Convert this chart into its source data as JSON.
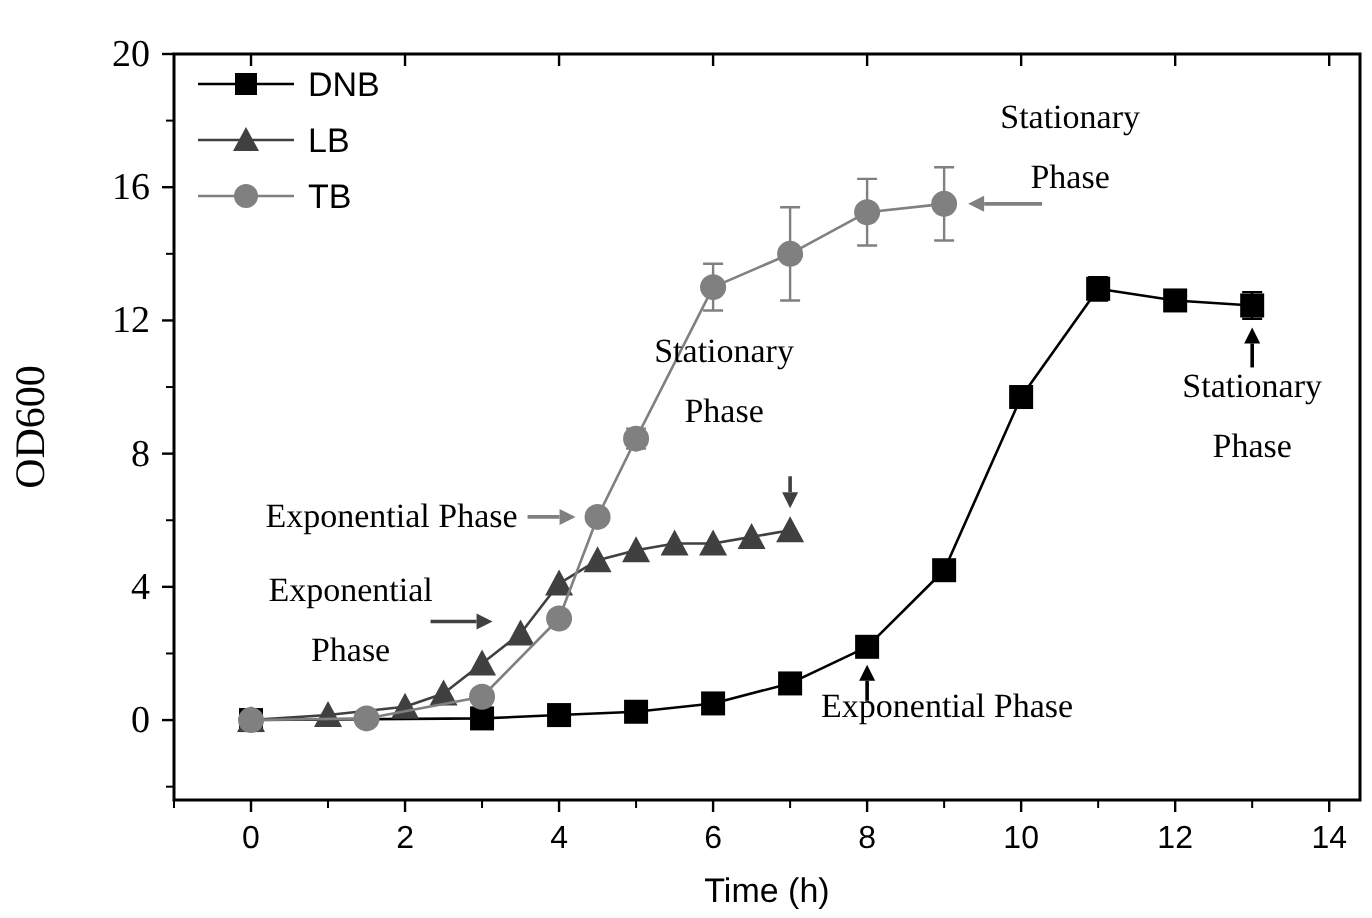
{
  "chart_data": {
    "type": "line",
    "xlabel": "Time (h)",
    "ylabel": "OD600",
    "xlim": [
      -1,
      14.4
    ],
    "ylim": [
      -2.4,
      20
    ],
    "xticks": [
      0,
      2,
      4,
      6,
      8,
      10,
      12,
      14
    ],
    "yticks": [
      0,
      4,
      8,
      12,
      16,
      20
    ],
    "legend": "top left",
    "marker": "square",
    "line_style": "solid",
    "grid": false,
    "series": [
      {
        "name": "DNB",
        "color": "#000000",
        "marker": "square",
        "x": [
          0,
          1.5,
          3,
          4,
          5,
          6,
          7,
          8,
          9,
          10,
          11,
          12,
          13
        ],
        "values": [
          0,
          null,
          0.05,
          0.15,
          0.25,
          0.5,
          1.1,
          2.2,
          4.5,
          9.7,
          12.95,
          12.6,
          12.45
        ],
        "errors": [
          null,
          null,
          null,
          null,
          null,
          null,
          null,
          null,
          null,
          null,
          0.35,
          null,
          0.4
        ]
      },
      {
        "name": "LB",
        "color": "#404040",
        "marker": "triangle",
        "x": [
          0,
          1,
          1.5,
          2,
          2.5,
          3,
          3.5,
          4,
          4.5,
          5,
          5.5,
          6,
          6.5,
          7
        ],
        "values": [
          0,
          0.15,
          null,
          0.4,
          0.8,
          1.7,
          2.6,
          4.1,
          4.8,
          5.1,
          5.3,
          5.3,
          5.5,
          5.7
        ]
      },
      {
        "name": "TB",
        "color": "#808080",
        "marker": "circle",
        "x": [
          0,
          1.5,
          3,
          4,
          4.5,
          5,
          6,
          7,
          8,
          9
        ],
        "values": [
          0,
          0.05,
          0.7,
          3.05,
          6.1,
          8.45,
          13,
          14,
          15.25,
          15.5
        ],
        "errors": [
          null,
          null,
          null,
          null,
          null,
          0.3,
          0.7,
          1.4,
          1,
          1.1
        ]
      }
    ],
    "annotations": [
      {
        "text": "Exponential Phase",
        "x": 4.5,
        "y": 6.1
      },
      {
        "text": "Exponential\nPhase",
        "x": 3.5,
        "y": 2.6
      },
      {
        "text": "Stationary\nPhase",
        "x": 7,
        "y": 5.7
      },
      {
        "text": "Stationary\nPhase",
        "x": 9,
        "y": 15.5
      },
      {
        "text": "Exponential Phase",
        "x": 8,
        "y": 2.2
      },
      {
        "text": "Stationary\nPhase",
        "x": 13,
        "y": 12.45
      }
    ]
  }
}
